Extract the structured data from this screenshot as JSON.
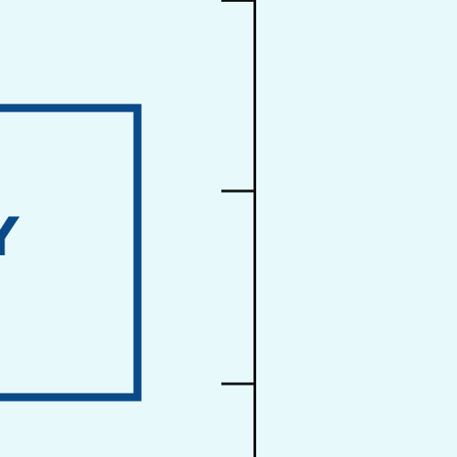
{
  "colors": {
    "background": "#e8f9fc",
    "box_stroke": "#0a4a8a",
    "label_text": "#0a4a8a",
    "axis_line": "#111111"
  },
  "box": {
    "label": "Y"
  },
  "axis": {
    "orientation": "vertical",
    "tick_count": 3
  }
}
